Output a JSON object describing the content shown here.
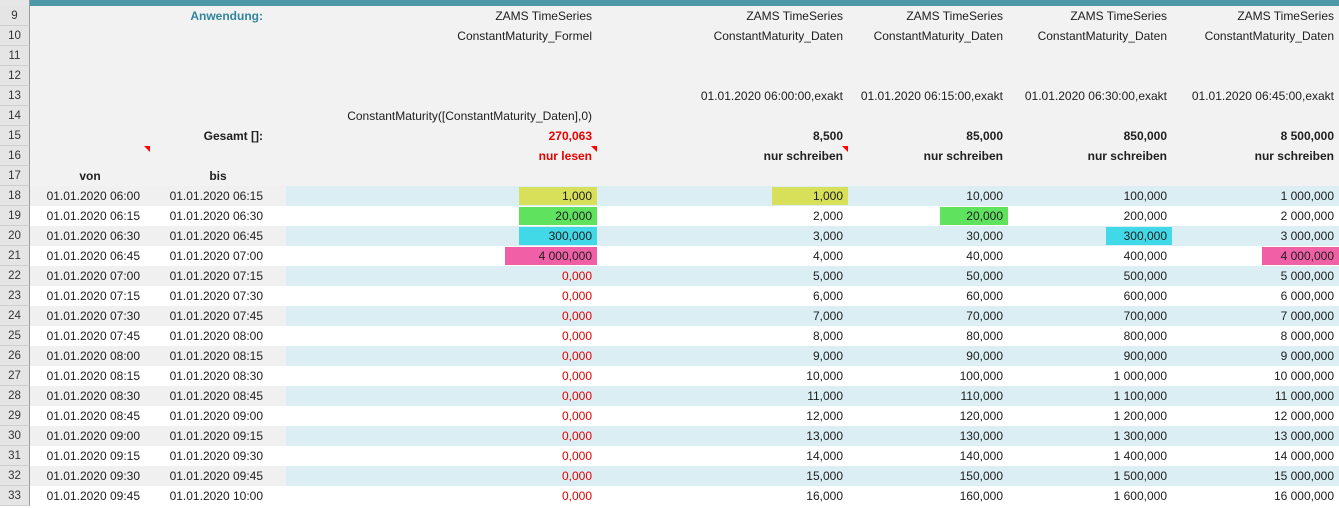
{
  "colors": {
    "topbar": "#4e98a8",
    "teal_text": "#31859c",
    "red_text": "#e60000",
    "band_left": "#f0f0f0",
    "band_right": "#daeef3",
    "header_bg": "#f2f2f2"
  },
  "row_numbers": [
    9,
    10,
    11,
    12,
    13,
    14,
    15,
    16,
    17,
    18,
    19,
    20,
    21,
    22,
    23,
    24,
    25,
    26,
    27,
    28,
    29,
    30,
    31,
    32,
    33
  ],
  "labels": {
    "anwendung": "Anwendung:",
    "series_title": "ZAMS TimeSeries",
    "formel_name": "ConstantMaturity_Formel",
    "daten_name": "ConstantMaturity_Daten",
    "formula": "ConstantMaturity([ConstantMaturity_Daten],0)",
    "gesamt": "Gesamt []:",
    "nur_lesen": "nur lesen",
    "nur_schreiben": "nur schreiben",
    "von": "von",
    "bis": "bis"
  },
  "exakt_headers": [
    "01.01.2020 06:00:00,exakt",
    "01.01.2020 06:15:00,exakt",
    "01.01.2020 06:30:00,exakt",
    "01.01.2020 06:45:00,exakt"
  ],
  "gesamt_row": {
    "c": "270,063",
    "d": "8,500",
    "e": "85,000",
    "f": "850,000",
    "g": "8 500,000"
  },
  "highlight_colors": {
    "yellow": "#d8e05a",
    "green": "#5fe35f",
    "cyan": "#41d9e8",
    "pink": "#f160a6"
  },
  "data_rows": [
    {
      "n": 18,
      "von": "01.01.2020 06:00",
      "bis": "01.01.2020 06:15",
      "c": "1,000",
      "c_hl": "yellow",
      "d": "1,000",
      "d_hl": "yellow",
      "e": "10,000",
      "f": "100,000",
      "g": "1 000,000"
    },
    {
      "n": 19,
      "von": "01.01.2020 06:15",
      "bis": "01.01.2020 06:30",
      "c": "20,000",
      "c_hl": "green",
      "d": "2,000",
      "e": "20,000",
      "e_hl": "green",
      "f": "200,000",
      "g": "2 000,000"
    },
    {
      "n": 20,
      "von": "01.01.2020 06:30",
      "bis": "01.01.2020 06:45",
      "c": "300,000",
      "c_hl": "cyan",
      "d": "3,000",
      "e": "30,000",
      "f": "300,000",
      "f_hl": "cyan",
      "g": "3 000,000"
    },
    {
      "n": 21,
      "von": "01.01.2020 06:45",
      "bis": "01.01.2020 07:00",
      "c": "4 000,000",
      "c_hl": "pink",
      "d": "4,000",
      "e": "40,000",
      "f": "400,000",
      "g": "4 000,000",
      "g_hl": "pink"
    },
    {
      "n": 22,
      "von": "01.01.2020 07:00",
      "bis": "01.01.2020 07:15",
      "c": "0,000",
      "d": "5,000",
      "e": "50,000",
      "f": "500,000",
      "g": "5 000,000"
    },
    {
      "n": 23,
      "von": "01.01.2020 07:15",
      "bis": "01.01.2020 07:30",
      "c": "0,000",
      "d": "6,000",
      "e": "60,000",
      "f": "600,000",
      "g": "6 000,000"
    },
    {
      "n": 24,
      "von": "01.01.2020 07:30",
      "bis": "01.01.2020 07:45",
      "c": "0,000",
      "d": "7,000",
      "e": "70,000",
      "f": "700,000",
      "g": "7 000,000"
    },
    {
      "n": 25,
      "von": "01.01.2020 07:45",
      "bis": "01.01.2020 08:00",
      "c": "0,000",
      "d": "8,000",
      "e": "80,000",
      "f": "800,000",
      "g": "8 000,000"
    },
    {
      "n": 26,
      "von": "01.01.2020 08:00",
      "bis": "01.01.2020 08:15",
      "c": "0,000",
      "d": "9,000",
      "e": "90,000",
      "f": "900,000",
      "g": "9 000,000"
    },
    {
      "n": 27,
      "von": "01.01.2020 08:15",
      "bis": "01.01.2020 08:30",
      "c": "0,000",
      "d": "10,000",
      "e": "100,000",
      "f": "1 000,000",
      "g": "10 000,000"
    },
    {
      "n": 28,
      "von": "01.01.2020 08:30",
      "bis": "01.01.2020 08:45",
      "c": "0,000",
      "d": "11,000",
      "e": "110,000",
      "f": "1 100,000",
      "g": "11 000,000"
    },
    {
      "n": 29,
      "von": "01.01.2020 08:45",
      "bis": "01.01.2020 09:00",
      "c": "0,000",
      "d": "12,000",
      "e": "120,000",
      "f": "1 200,000",
      "g": "12 000,000"
    },
    {
      "n": 30,
      "von": "01.01.2020 09:00",
      "bis": "01.01.2020 09:15",
      "c": "0,000",
      "d": "13,000",
      "e": "130,000",
      "f": "1 300,000",
      "g": "13 000,000"
    },
    {
      "n": 31,
      "von": "01.01.2020 09:15",
      "bis": "01.01.2020 09:30",
      "c": "0,000",
      "d": "14,000",
      "e": "140,000",
      "f": "1 400,000",
      "g": "14 000,000"
    },
    {
      "n": 32,
      "von": "01.01.2020 09:30",
      "bis": "01.01.2020 09:45",
      "c": "0,000",
      "d": "15,000",
      "e": "150,000",
      "f": "1 500,000",
      "g": "15 000,000"
    },
    {
      "n": 33,
      "von": "01.01.2020 09:45",
      "bis": "01.01.2020 10:00",
      "c": "0,000",
      "d": "16,000",
      "e": "160,000",
      "f": "1 600,000",
      "g": "16 000,000"
    }
  ]
}
